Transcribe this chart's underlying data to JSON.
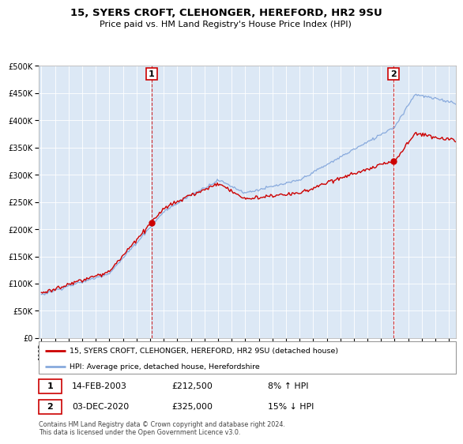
{
  "title": "15, SYERS CROFT, CLEHONGER, HEREFORD, HR2 9SU",
  "subtitle": "Price paid vs. HM Land Registry's House Price Index (HPI)",
  "legend_line1": "15, SYERS CROFT, CLEHONGER, HEREFORD, HR2 9SU (detached house)",
  "legend_line2": "HPI: Average price, detached house, Herefordshire",
  "transaction1_date": "14-FEB-2003",
  "transaction1_price": "£212,500",
  "transaction1_hpi": "8% ↑ HPI",
  "transaction2_date": "03-DEC-2020",
  "transaction2_price": "£325,000",
  "transaction2_hpi": "15% ↓ HPI",
  "footnote": "Contains HM Land Registry data © Crown copyright and database right 2024.\nThis data is licensed under the Open Government Licence v3.0.",
  "price_color": "#cc0000",
  "hpi_color": "#88aadd",
  "marker1_year": 2003.12,
  "marker1_price": 212500,
  "marker2_year": 2020.92,
  "marker2_price": 325000,
  "ylim": [
    0,
    500000
  ],
  "xlim_start": 1994.8,
  "xlim_end": 2025.5,
  "chart_bg": "#dce8f5",
  "background_color": "#ffffff",
  "grid_color": "#ffffff"
}
